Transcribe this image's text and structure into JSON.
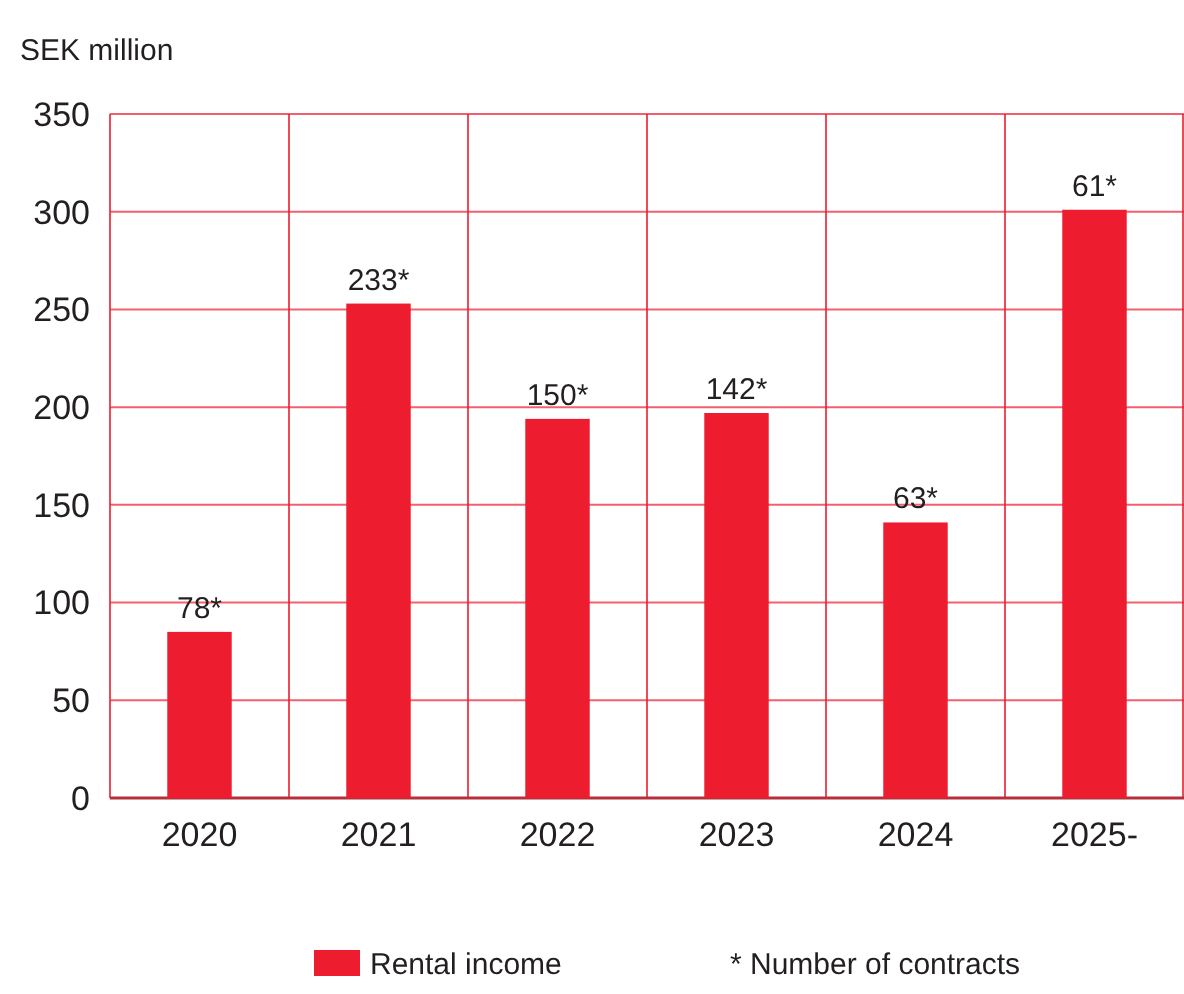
{
  "chart_data": {
    "type": "bar",
    "ylabel": "SEK million",
    "categories": [
      "2020",
      "2021",
      "2022",
      "2023",
      "2024",
      "2025-"
    ],
    "series": [
      {
        "name": "Rental income",
        "color": "#ed1c2e",
        "values": [
          85,
          253,
          194,
          197,
          141,
          301
        ]
      }
    ],
    "value_labels": [
      "78*",
      "233*",
      "150*",
      "142*",
      "63*",
      "61*"
    ],
    "ylim": [
      0,
      350
    ],
    "yticks": [
      0,
      50,
      100,
      150,
      200,
      250,
      300,
      350
    ],
    "grid": true,
    "legend": "bottom",
    "annotations": [
      "* Number of contracts"
    ]
  }
}
